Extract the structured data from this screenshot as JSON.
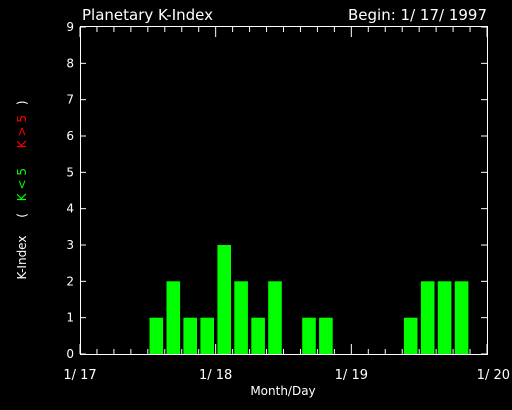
{
  "chart_data": {
    "type": "bar",
    "title": "Planetary K-Index",
    "begin_label": "Begin: 1/ 17/ 1997",
    "xlabel": "Month/Day",
    "ylabel_main": "K-Index",
    "ylabel_paren_open": "(",
    "ylabel_low": "K < 5",
    "ylabel_high": "K > 5",
    "ylim": [
      0,
      9
    ],
    "yticks": [
      "0",
      "1",
      "2",
      "3",
      "4",
      "5",
      "6",
      "7",
      "8",
      "9"
    ],
    "xlim": [
      0,
      24
    ],
    "xticks": [
      {
        "label": "1/ 17",
        "x": 0
      },
      {
        "label": "1/ 18",
        "x": 8
      },
      {
        "label": "1/ 19",
        "x": 16
      },
      {
        "label": "1/ 20",
        "x": 24
      }
    ],
    "bar_width": 0.8,
    "values": [
      null,
      null,
      null,
      null,
      1,
      2,
      1,
      1,
      3,
      2,
      1,
      2,
      null,
      1,
      1,
      null,
      null,
      null,
      null,
      1,
      2,
      2,
      2,
      null
    ],
    "colors": {
      "low": "#00ff00",
      "high": "#ff0000",
      "axes": "#ffffff",
      "background": "#000000"
    }
  }
}
